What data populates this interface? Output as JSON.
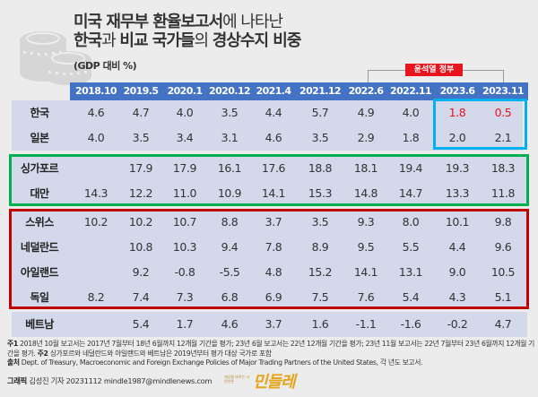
{
  "title": {
    "line1_bold": "미국 재무부 환율보고서",
    "line1_light": "에 나타난",
    "line2_a": "한국",
    "line2_b": "과 ",
    "line2_c": "비교 국가들",
    "line2_d": "의 ",
    "line2_e": "경상수지 비중"
  },
  "subtitle": "(GDP 대비 %)",
  "government_label": "윤석열 정부",
  "colors": {
    "header": "#4472c4",
    "row_bg": "#d3d8ea",
    "korea_japan_box": "#00b0f0",
    "asia_box": "#00b050",
    "europe_box": "#c00000",
    "highlight_text": "#e8141e"
  },
  "chart_data": {
    "type": "table",
    "title": "미국 재무부 환율보고서에 나타난 한국과 비교 국가들의 경상수지 비중",
    "unit": "GDP 대비 %",
    "columns": [
      "2018.10",
      "2019.5",
      "2020.1",
      "2020.12",
      "2021.4",
      "2021.12",
      "2022.6",
      "2022.11",
      "2023.6",
      "2023.11"
    ],
    "groups": [
      {
        "name": "korea-japan",
        "rows": [
          {
            "label": "한국",
            "values": [
              "4.6",
              "4.7",
              "4.0",
              "3.5",
              "4.4",
              "5.7",
              "4.9",
              "4.0",
              "1.8",
              "0.5"
            ],
            "highlight": [
              false,
              false,
              false,
              false,
              false,
              false,
              false,
              false,
              true,
              true
            ]
          },
          {
            "label": "일본",
            "values": [
              "4.0",
              "3.5",
              "3.4",
              "3.1",
              "4.6",
              "3.5",
              "2.9",
              "1.8",
              "2.0",
              "2.1"
            ],
            "highlight": [
              false,
              false,
              false,
              false,
              false,
              false,
              false,
              false,
              false,
              false
            ]
          }
        ]
      },
      {
        "name": "asia",
        "rows": [
          {
            "label": "싱가포르",
            "values": [
              "",
              "17.9",
              "17.9",
              "16.1",
              "17.6",
              "18.8",
              "18.1",
              "19.4",
              "19.3",
              "18.3"
            ]
          },
          {
            "label": "대만",
            "values": [
              "14.3",
              "12.2",
              "11.0",
              "10.9",
              "14.1",
              "15.3",
              "14.8",
              "14.7",
              "13.3",
              "11.8"
            ]
          }
        ]
      },
      {
        "name": "europe",
        "rows": [
          {
            "label": "스위스",
            "values": [
              "10.2",
              "10.2",
              "10.7",
              "8.8",
              "3.7",
              "3.5",
              "9.3",
              "8.0",
              "10.1",
              "9.8"
            ]
          },
          {
            "label": "네덜란드",
            "values": [
              "",
              "10.8",
              "10.3",
              "9.4",
              "7.8",
              "8.9",
              "9.5",
              "5.5",
              "4.4",
              "9.6"
            ]
          },
          {
            "label": "아일랜드",
            "values": [
              "",
              "9.2",
              "-0.8",
              "-5.5",
              "4.8",
              "15.2",
              "14.1",
              "13.1",
              "9.0",
              "10.5"
            ]
          },
          {
            "label": "독일",
            "values": [
              "8.2",
              "7.4",
              "7.3",
              "6.8",
              "6.9",
              "7.5",
              "7.6",
              "5.4",
              "4.3",
              "5.1"
            ]
          }
        ]
      },
      {
        "name": "other",
        "rows": [
          {
            "label": "베트남",
            "values": [
              "",
              "5.4",
              "1.7",
              "4.6",
              "3.7",
              "1.6",
              "-1.1",
              "-1.6",
              "-0.2",
              "4.7"
            ]
          }
        ]
      }
    ],
    "annotations": [
      "윤석열 정부 (2023.6, 2023.11)"
    ]
  },
  "notes": {
    "n1_label": "주1",
    "n1_text": " 2018년 10월 보고서는 2017년 7월부터 18년 6월까지 12개월 기간을 평가; 23년 6월 보고서는 22년 12개월 기간을 평가; 23년 11월 보고서는 22년 7월부터 23년 6월까지 12개월 기간을 평가. ",
    "n2_label": "주2",
    "n2_text": " 싱가포르와 네덜란드와 아일랜드와 베트남은 2019년부터 평가 대상 국가로 포함",
    "source_label": "출처",
    "source_text": " Dept. of Treasury, Macroeconomic and Foreign Exchange Policies of Major Trading Partners of the United States, 각 년도 보고서."
  },
  "credit": {
    "label": "그래픽",
    "text": " 김성진 기자 20231112 mindle1987@mindlenews.com",
    "logo_small": "세상을 바꾸는 시민언론",
    "logo": "민들레"
  }
}
